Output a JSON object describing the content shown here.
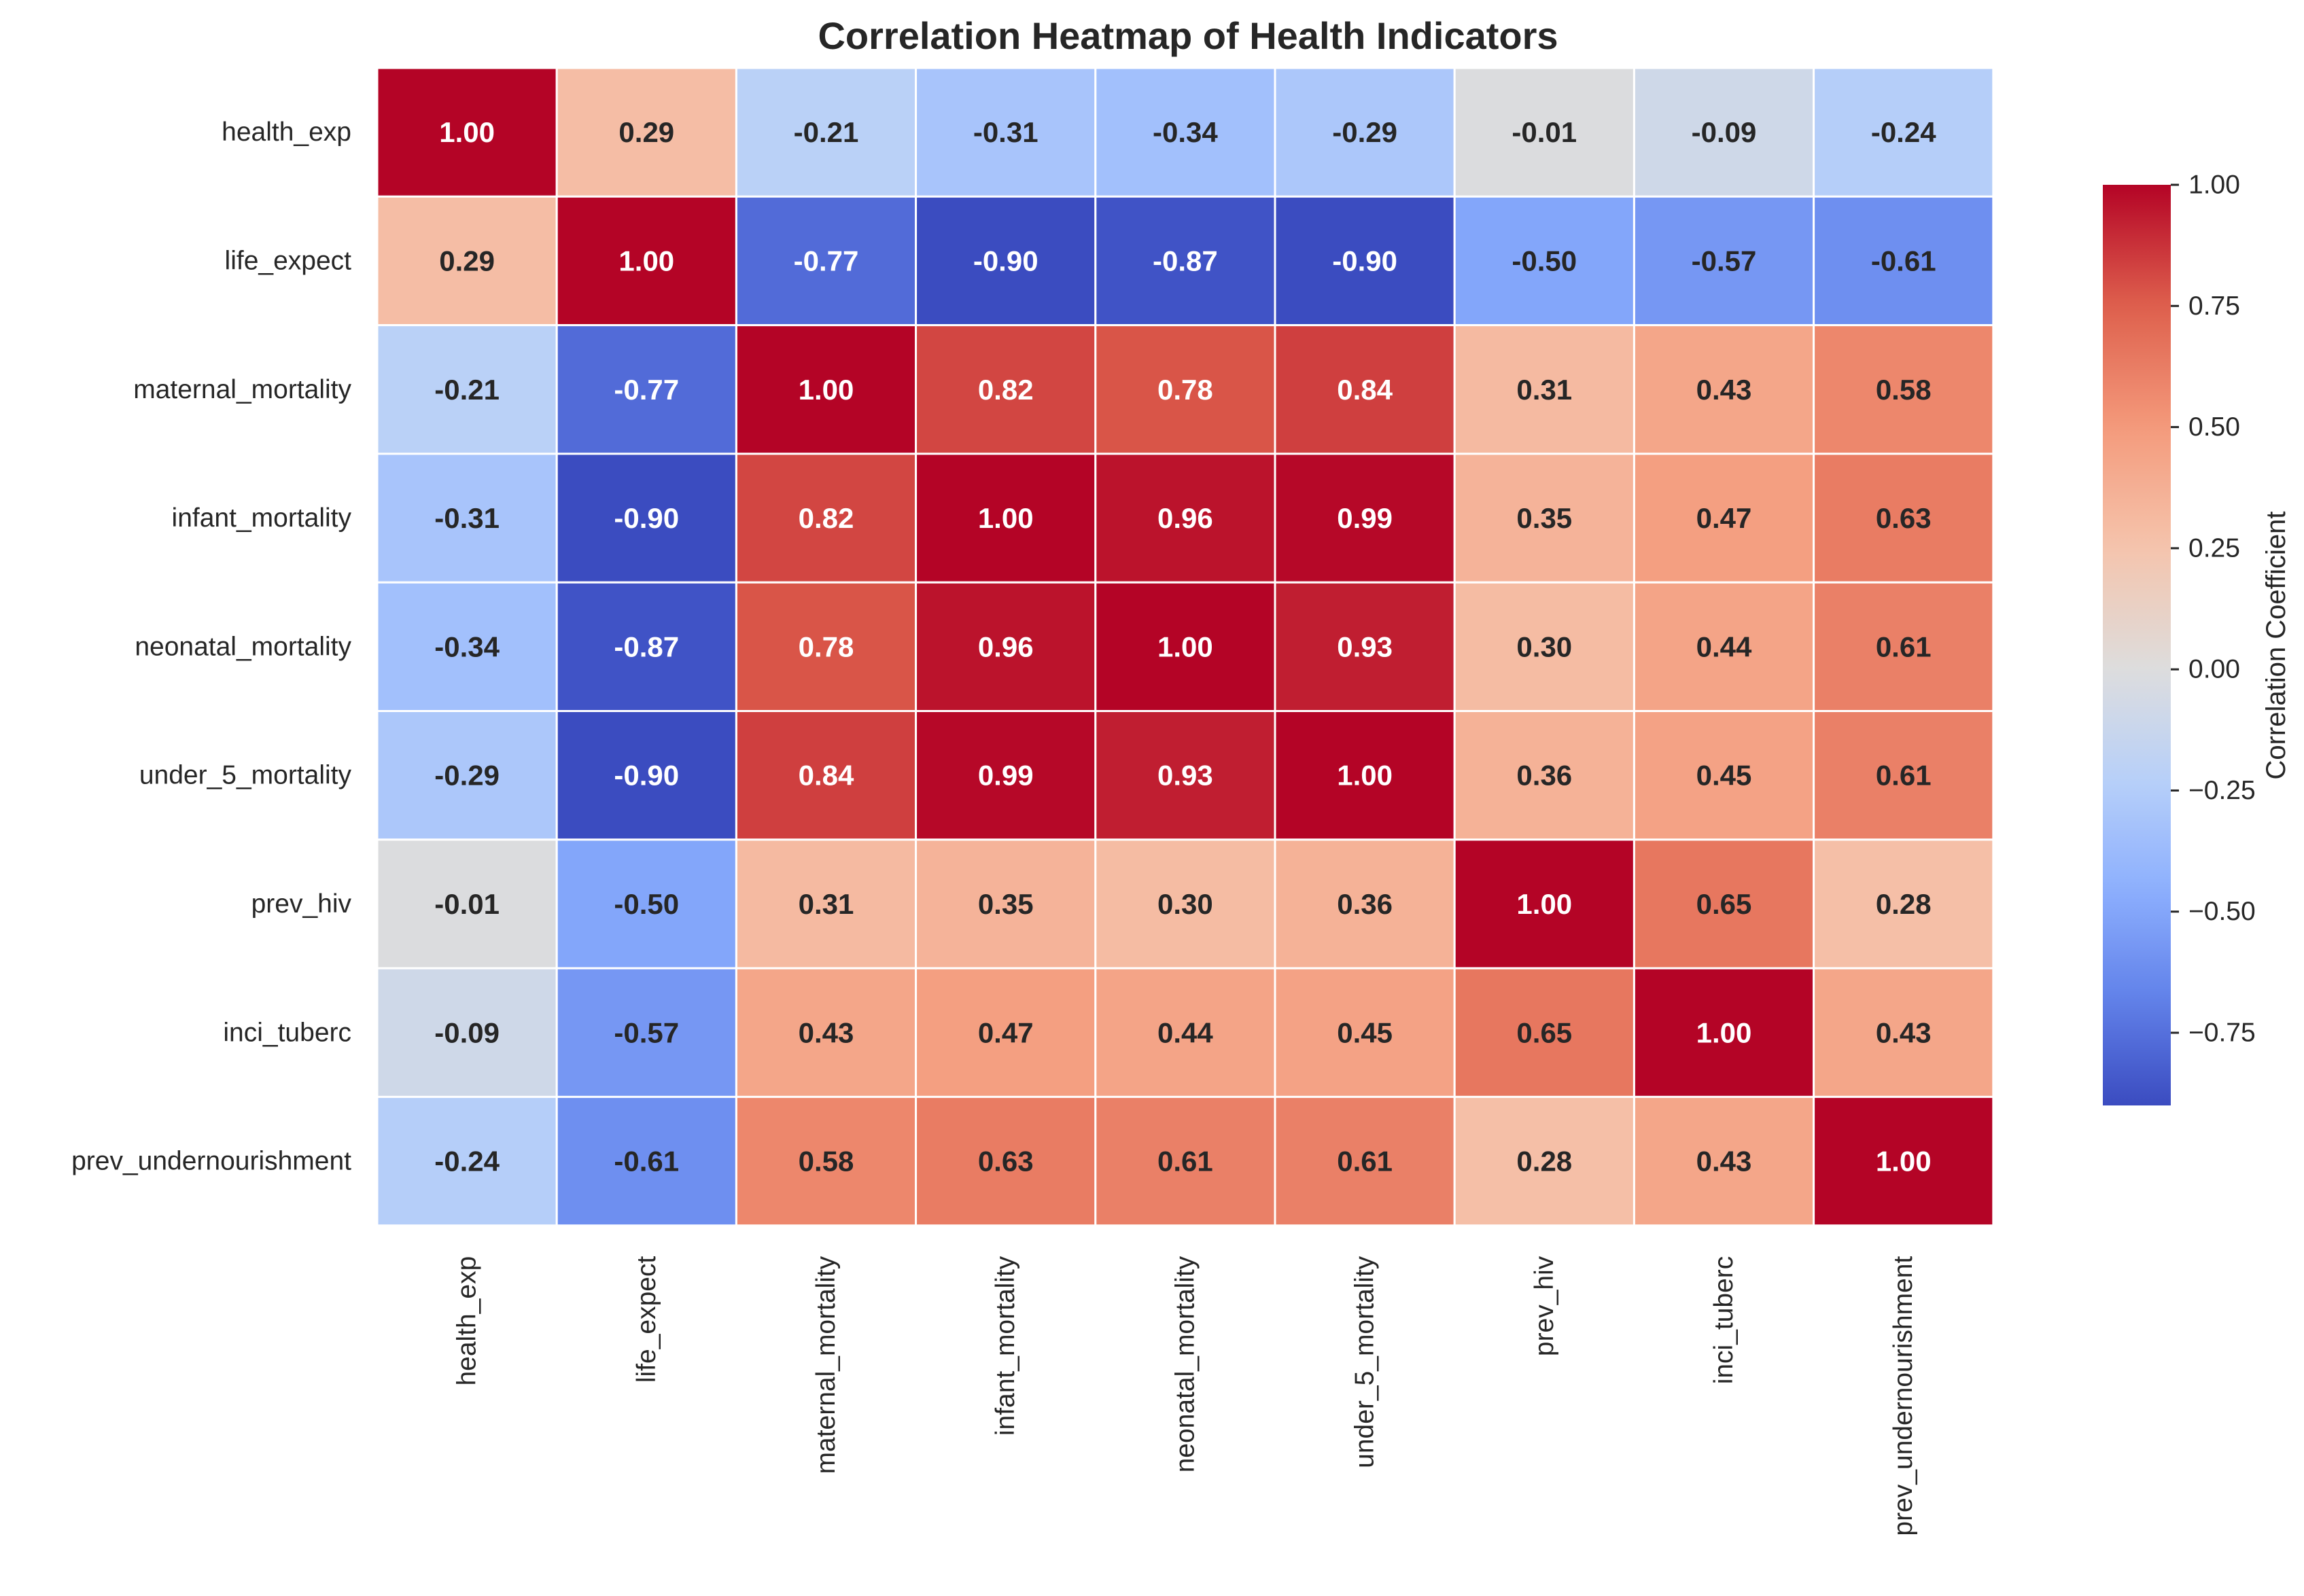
{
  "chart_data": {
    "type": "heatmap",
    "title": "Correlation Heatmap of Health Indicators",
    "xlabel": "",
    "ylabel": "",
    "rows": [
      "health_exp",
      "life_expect",
      "maternal_mortality",
      "infant_mortality",
      "neonatal_mortality",
      "under_5_mortality",
      "prev_hiv",
      "inci_tuberc",
      "prev_undernourishment"
    ],
    "columns": [
      "health_exp",
      "life_expect",
      "maternal_mortality",
      "infant_mortality",
      "neonatal_mortality",
      "under_5_mortality",
      "prev_hiv",
      "inci_tuberc",
      "prev_undernourishment"
    ],
    "values": [
      [
        1.0,
        0.29,
        -0.21,
        -0.31,
        -0.34,
        -0.29,
        -0.01,
        -0.09,
        -0.24
      ],
      [
        0.29,
        1.0,
        -0.77,
        -0.9,
        -0.87,
        -0.9,
        -0.5,
        -0.57,
        -0.61
      ],
      [
        -0.21,
        -0.77,
        1.0,
        0.82,
        0.78,
        0.84,
        0.31,
        0.43,
        0.58
      ],
      [
        -0.31,
        -0.9,
        0.82,
        1.0,
        0.96,
        0.99,
        0.35,
        0.47,
        0.63
      ],
      [
        -0.34,
        -0.87,
        0.78,
        0.96,
        1.0,
        0.93,
        0.3,
        0.44,
        0.61
      ],
      [
        -0.29,
        -0.9,
        0.84,
        0.99,
        0.93,
        1.0,
        0.36,
        0.45,
        0.61
      ],
      [
        -0.01,
        -0.5,
        0.31,
        0.35,
        0.3,
        0.36,
        1.0,
        0.65,
        0.28
      ],
      [
        -0.09,
        -0.57,
        0.43,
        0.47,
        0.44,
        0.45,
        0.65,
        1.0,
        0.43
      ],
      [
        -0.24,
        -0.61,
        0.58,
        0.63,
        0.61,
        0.61,
        0.28,
        0.43,
        1.0
      ]
    ],
    "value_format": "0.00",
    "colormap": "coolwarm",
    "vmin": -0.9,
    "vmax": 1.0,
    "colorbar": {
      "label": "Correlation Coefficient",
      "ticks": [
        1.0,
        0.75,
        0.5,
        0.25,
        0.0,
        -0.25,
        -0.5,
        -0.75
      ],
      "tick_labels": [
        "1.00",
        "0.75",
        "0.50",
        "0.25",
        "0.00",
        "−0.25",
        "−0.50",
        "−0.75"
      ],
      "placement": "right"
    },
    "grid": true,
    "cell_border_color": "#ffffff"
  }
}
